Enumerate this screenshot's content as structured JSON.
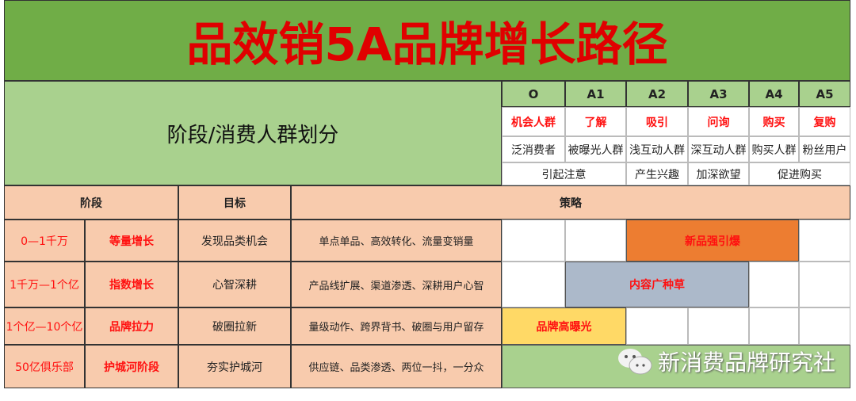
{
  "title": "品效销5A品牌增长路径",
  "header": {
    "label": "阶段/消费人群划分",
    "stages": [
      "O",
      "A1",
      "A2",
      "A3",
      "A4",
      "A5"
    ],
    "actions": [
      "机会人群",
      "了解",
      "吸引",
      "问询",
      "购买",
      "复购"
    ],
    "groups": [
      "泛消费者",
      "被曝光人群",
      "浅互动人群",
      "深互动人群",
      "购买人群",
      "粉丝用户"
    ],
    "goals": [
      "引起注意",
      "产生兴趣",
      "加深欲望",
      "促进购买"
    ]
  },
  "table": {
    "headers": [
      "阶段",
      "目标",
      "策略"
    ],
    "rows": [
      {
        "scale": "0—1千万",
        "stage": "等量增长",
        "goal": "发现品类机会",
        "strategy": "单点单品、高效转化、流量变销量",
        "bar": "新品强引爆"
      },
      {
        "scale": "1千万—1个亿",
        "stage": "指数增长",
        "goal": "心智深耕",
        "strategy": "产品线扩展、渠道渗透、深耕用户心智",
        "bar": "内容广种草"
      },
      {
        "scale": "1个亿—10个亿",
        "stage": "品牌拉力",
        "goal": "破圈拉新",
        "strategy": "量级动作、跨界背书、破圈与用户留存",
        "bar": "品牌高曝光"
      },
      {
        "scale": "50亿俱乐部",
        "stage": "护城河阶段",
        "goal": "夯实护城河",
        "strategy": "供应链、品类渗透、两位一抖，一分众",
        "bar": ""
      }
    ]
  },
  "colors": {
    "title_bg": "#70ad47",
    "header_bg": "#a9d18e",
    "row_bg": "#f8cbad",
    "bar1": "#ed7d31",
    "bar2": "#acb9ca",
    "bar3": "#ffd966",
    "bar4": "#a9d18e",
    "accent": "#ff1010"
  },
  "watermark": "新消费品牌研究社"
}
